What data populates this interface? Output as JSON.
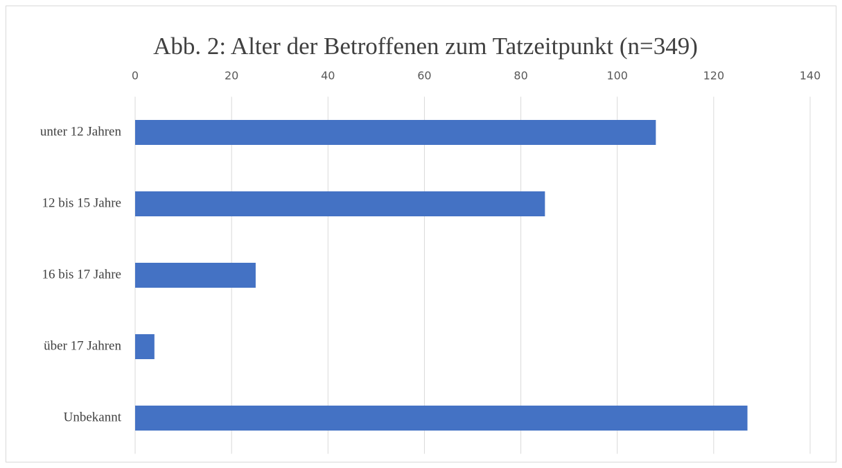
{
  "chart_data": {
    "type": "barh",
    "title": "Abb. 2: Alter der Betroffenen zum Tatzeitpunkt (n=349)",
    "categories": [
      "unter 12 Jahren",
      "12 bis 15 Jahre",
      "16 bis 17 Jahre",
      "über 17 Jahren",
      "Unbekannt"
    ],
    "values": [
      108,
      85,
      25,
      4,
      127
    ],
    "color": "#4472c4",
    "xlim": [
      0,
      140
    ],
    "xticks": [
      0,
      20,
      40,
      60,
      80,
      100,
      120,
      140
    ],
    "grid": true
  }
}
